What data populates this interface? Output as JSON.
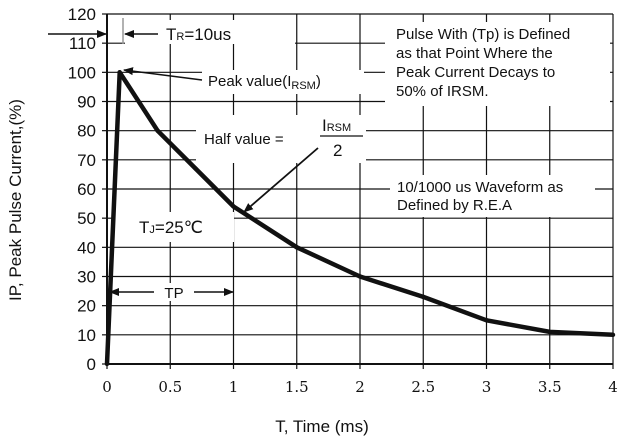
{
  "chart_data": {
    "type": "line",
    "xlabel": "T, Time (ms)",
    "ylabel": "IP, Peak Pulse Current,(%)",
    "xlim": [
      0,
      4
    ],
    "ylim": [
      0,
      120
    ],
    "x_ticks": [
      "0",
      "0.5",
      "1",
      "1.5",
      "2",
      "2.5",
      "3",
      "3.5",
      "4"
    ],
    "y_ticks": [
      "0",
      "10",
      "20",
      "30",
      "40",
      "50",
      "60",
      "70",
      "80",
      "90",
      "100",
      "110",
      "120"
    ],
    "grid": true,
    "series": [
      {
        "x": [
          0,
          0.1,
          0.4,
          0.7,
          1.0,
          1.5,
          2.0,
          2.5,
          3.0,
          3.5,
          4.0
        ],
        "y": [
          0,
          100,
          80,
          67,
          54,
          40,
          30,
          23,
          15,
          11,
          10
        ]
      }
    ],
    "annotations": {
      "tr": {
        "main": "T",
        "sub": "R",
        "rest": "=10us"
      },
      "peak": {
        "main": "Peak value(I",
        "sub": "RSM",
        "rest": ")"
      },
      "half": {
        "label": "Half value  =",
        "num_main": "I",
        "num_sub": "RSM",
        "den": "2"
      },
      "pulse_desc": [
        "Pulse With (Tp) is Defined",
        "as that Point Where the",
        "Peak Current Decays to",
        "50% of  IRSM."
      ],
      "waveform": [
        "10/1000 us Waveform as",
        "Defined by R.E.A"
      ],
      "tj": {
        "main": "T",
        "sub": "J",
        "rest": "=25℃"
      },
      "tp": "TP"
    }
  }
}
